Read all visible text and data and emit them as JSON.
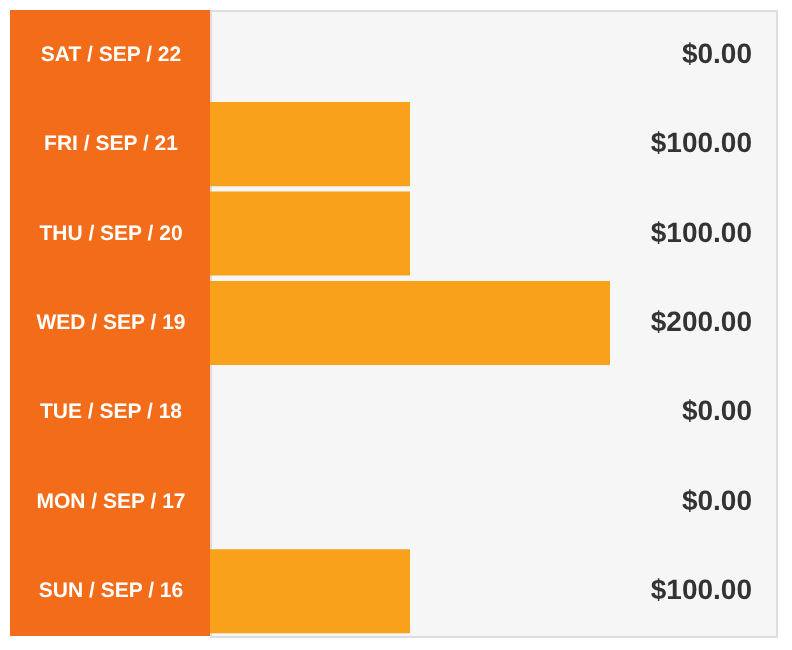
{
  "chart_data": {
    "type": "bar",
    "orientation": "horizontal",
    "categories": [
      "SAT / SEP / 22",
      "FRI / SEP / 21",
      "THU / SEP / 20",
      "WED / SEP / 19",
      "TUE / SEP / 18",
      "MON / SEP / 17",
      "SUN / SEP / 16"
    ],
    "values": [
      0,
      100,
      100,
      200,
      0,
      0,
      100
    ],
    "value_labels": [
      "$0.00",
      "$100.00",
      "$100.00",
      "$200.00",
      "$0.00",
      "$0.00",
      "$100.00"
    ],
    "color": "#f9a11b",
    "xlim": [
      0,
      283
    ]
  }
}
